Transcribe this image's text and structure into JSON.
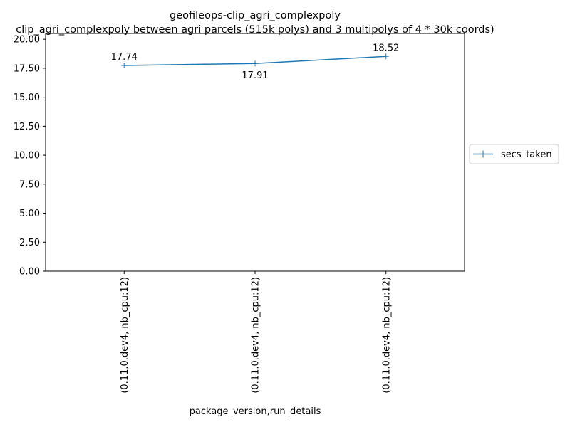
{
  "chart_data": {
    "type": "line",
    "title": "geofileops-clip_agri_complexpoly",
    "subtitle": "clip_agri_complexpoly between agri parcels (515k polys) and 3 multipolys of 4 * 30k coords)",
    "xlabel": "package_version,run_details",
    "ylabel": "",
    "categories": [
      "(0.11.0.dev4, nb_cpu:12)",
      "(0.11.0.dev4, nb_cpu:12)",
      "(0.11.0.dev4, nb_cpu:12)"
    ],
    "series": [
      {
        "name": "secs_taken",
        "values": [
          17.74,
          17.91,
          18.52
        ],
        "color": "#1f77b4",
        "marker": "plus"
      }
    ],
    "data_labels": [
      "17.74",
      "17.91",
      "18.52"
    ],
    "ylim": [
      0,
      20.5
    ],
    "yticks": [
      0,
      2.5,
      5,
      7.5,
      10,
      12.5,
      15,
      17.5,
      20
    ],
    "ytick_labels": [
      "0.00",
      "2.50",
      "5.00",
      "7.50",
      "10.00",
      "12.50",
      "15.00",
      "17.50",
      "20.00"
    ],
    "grid": false,
    "legend": "right"
  }
}
